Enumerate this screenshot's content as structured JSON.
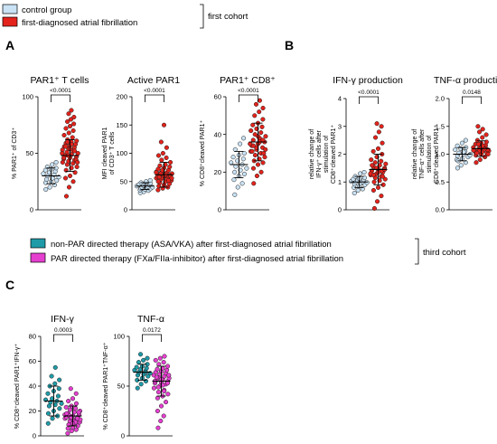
{
  "figure": {
    "letters": [
      "A",
      "B",
      "C"
    ],
    "legend_top": {
      "items": [
        {
          "label": "control group",
          "color": "#c9e2f4"
        },
        {
          "label": "first-diagnosed atrial fibrillation",
          "color": "#e3231c"
        }
      ],
      "cohort": "first cohort"
    },
    "legend_mid": {
      "items": [
        {
          "label": "non-PAR directed therapy (ASA/VKA) after first-diagnosed atrial fibrillation",
          "color": "#1f9ba8"
        },
        {
          "label": "PAR directed therapy (FXa/FIIa-inhibitor) after first-diagnosed atrial fibrillation",
          "color": "#e53fd0"
        }
      ],
      "cohort": "third cohort"
    }
  },
  "chart_data": [
    {
      "type": "scatter",
      "panel": "A",
      "title": "PAR1⁺ T cells",
      "ylabel": "% PAR1⁺ of CD3⁺",
      "ylim": [
        0,
        100
      ],
      "yticks": [
        0,
        50,
        100
      ],
      "pvalue": "<0.0001",
      "series": [
        {
          "values": [
            18,
            20,
            22,
            24,
            25,
            26,
            27,
            28,
            29,
            30,
            31,
            32,
            33,
            34,
            35,
            36,
            37,
            38,
            40,
            42
          ],
          "mean": 30,
          "sd": 7
        },
        {
          "values": [
            12,
            20,
            25,
            28,
            30,
            33,
            35,
            37,
            38,
            40,
            41,
            42,
            43,
            44,
            45,
            46,
            47,
            48,
            49,
            50,
            51,
            52,
            53,
            54,
            55,
            56,
            57,
            58,
            59,
            60,
            61,
            62,
            64,
            66,
            68,
            70,
            72,
            74,
            76,
            78,
            80,
            82,
            85,
            88,
            50,
            48,
            52,
            46,
            54,
            44,
            56,
            58,
            42,
            60
          ],
          "mean": 48,
          "sd": 14
        }
      ]
    },
    {
      "type": "scatter",
      "panel": "A",
      "title": "Active PAR1",
      "ylabel": "MFI cleaved PAR1 of CD3⁺ T cells",
      "ylim": [
        0,
        200
      ],
      "yticks": [
        0,
        50,
        100,
        150,
        200
      ],
      "pvalue": "<0.0001",
      "series": [
        {
          "values": [
            30,
            32,
            34,
            35,
            36,
            37,
            38,
            39,
            40,
            40,
            41,
            42,
            43,
            44,
            45,
            46,
            47,
            48,
            50,
            52
          ],
          "mean": 42,
          "sd": 6
        },
        {
          "values": [
            35,
            38,
            40,
            42,
            44,
            46,
            48,
            50,
            52,
            54,
            55,
            56,
            57,
            58,
            59,
            60,
            61,
            62,
            63,
            64,
            65,
            66,
            67,
            68,
            70,
            72,
            74,
            76,
            78,
            80,
            84,
            88,
            92,
            96,
            100,
            110,
            120,
            150,
            60,
            58,
            62,
            56,
            64,
            54,
            66,
            70,
            52,
            50
          ],
          "mean": 62,
          "sd": 22
        }
      ]
    },
    {
      "type": "scatter",
      "panel": "A",
      "title": "PAR1⁺ CD8⁺",
      "ylabel": "% CD8⁺cleaved PAR1⁺",
      "ylim": [
        0,
        60
      ],
      "yticks": [
        0,
        20,
        40,
        60
      ],
      "pvalue": "<0.0001",
      "series": [
        {
          "values": [
            8,
            12,
            14,
            16,
            18,
            19,
            20,
            21,
            22,
            23,
            24,
            25,
            26,
            27,
            28,
            29,
            30,
            32,
            35,
            38
          ],
          "mean": 24,
          "sd": 7
        },
        {
          "values": [
            14,
            18,
            20,
            22,
            24,
            25,
            26,
            27,
            28,
            29,
            30,
            31,
            32,
            33,
            34,
            35,
            36,
            37,
            38,
            39,
            40,
            41,
            42,
            43,
            44,
            45,
            46,
            48,
            50,
            52,
            54,
            56,
            58,
            35,
            33,
            37,
            31,
            39,
            30,
            34,
            36,
            32
          ],
          "mean": 36,
          "sd": 10
        }
      ]
    },
    {
      "type": "scatter",
      "panel": "B",
      "title": "IFN-γ production",
      "ylabel": "relative change of IFN-γ⁺ cells after stimulation of CD8⁺cleaved PAR1⁺",
      "ylim": [
        0,
        4
      ],
      "yticks": [
        0,
        1,
        2,
        3,
        4
      ],
      "pvalue": "<0.0001",
      "series": [
        {
          "values": [
            0.6,
            0.7,
            0.75,
            0.8,
            0.85,
            0.9,
            0.92,
            0.95,
            0.98,
            1.0,
            1.0,
            1.02,
            1.05,
            1.08,
            1.1,
            1.12,
            1.15,
            1.2,
            1.3,
            1.35
          ],
          "mean": 1.0,
          "sd": 0.2
        },
        {
          "values": [
            0.05,
            0.3,
            0.5,
            0.7,
            0.8,
            0.9,
            1.0,
            1.05,
            1.1,
            1.15,
            1.2,
            1.25,
            1.3,
            1.35,
            1.4,
            1.45,
            1.5,
            1.55,
            1.6,
            1.65,
            1.7,
            1.75,
            1.8,
            1.9,
            2.0,
            2.1,
            2.2,
            2.4,
            2.6,
            2.8,
            3.0,
            3.1,
            1.4,
            1.3,
            1.5,
            1.2,
            1.6,
            1.35,
            1.45,
            1.25
          ],
          "mean": 1.45,
          "sd": 0.55
        }
      ]
    },
    {
      "type": "scatter",
      "panel": "B",
      "title": "TNF-α production",
      "ylabel": "relative change of TNF-α⁺ cells after stimulation of CD8⁺cleaved PAR1⁺",
      "ylim": [
        0,
        2
      ],
      "yticks": [
        0.0,
        0.5,
        1.0,
        1.5,
        2.0
      ],
      "pvalue": "0.0148",
      "series": [
        {
          "values": [
            0.75,
            0.8,
            0.85,
            0.9,
            0.92,
            0.95,
            0.97,
            1.0,
            1.0,
            1.02,
            1.05,
            1.08,
            1.1,
            1.12,
            1.15,
            1.2,
            1.25,
            0.88,
            1.04,
            0.98
          ],
          "mean": 1.0,
          "sd": 0.12
        },
        {
          "values": [
            0.85,
            0.9,
            0.95,
            0.98,
            1.0,
            1.02,
            1.04,
            1.05,
            1.06,
            1.08,
            1.1,
            1.12,
            1.14,
            1.16,
            1.18,
            1.2,
            1.22,
            1.25,
            1.3,
            1.35,
            1.4,
            1.45,
            1.5,
            1.06,
            1.1,
            1.04,
            1.12,
            1.08,
            1.02,
            1.15,
            1.0,
            1.18,
            1.09,
            1.07
          ],
          "mean": 1.1,
          "sd": 0.14
        }
      ]
    },
    {
      "type": "scatter",
      "panel": "C",
      "title": "IFN-γ",
      "ylabel": "% CD8⁺cleaved PAR1⁺IFN-γ⁺",
      "ylim": [
        0,
        80
      ],
      "yticks": [
        0,
        20,
        40,
        60,
        80
      ],
      "pvalue": "0.0003",
      "series": [
        {
          "values": [
            10,
            14,
            16,
            18,
            20,
            22,
            24,
            25,
            26,
            27,
            28,
            29,
            30,
            32,
            34,
            36,
            38,
            40,
            42,
            45,
            48,
            55
          ],
          "mean": 28,
          "sd": 12
        },
        {
          "values": [
            2,
            4,
            5,
            6,
            7,
            8,
            9,
            10,
            11,
            12,
            13,
            14,
            14,
            15,
            15,
            16,
            17,
            18,
            19,
            20,
            21,
            22,
            23,
            24,
            26,
            28,
            30,
            34,
            38,
            12,
            13,
            16,
            11,
            17,
            15,
            14,
            18,
            10,
            19,
            9
          ],
          "mean": 16,
          "sd": 8
        }
      ]
    },
    {
      "type": "scatter",
      "panel": "C",
      "title": "TNF-α",
      "ylabel": "% CD8⁺cleaved PAR1⁺TNF-α⁺",
      "ylim": [
        0,
        100
      ],
      "yticks": [
        0,
        50,
        100
      ],
      "pvalue": "0.0172",
      "series": [
        {
          "values": [
            48,
            52,
            55,
            56,
            58,
            60,
            61,
            62,
            63,
            64,
            65,
            66,
            67,
            68,
            69,
            70,
            72,
            74,
            76,
            78,
            82,
            64
          ],
          "mean": 64,
          "sd": 8
        },
        {
          "values": [
            8,
            15,
            20,
            25,
            30,
            34,
            38,
            40,
            42,
            44,
            46,
            48,
            50,
            52,
            53,
            54,
            55,
            56,
            57,
            58,
            59,
            60,
            61,
            62,
            63,
            64,
            65,
            66,
            67,
            68,
            70,
            72,
            74,
            76,
            78,
            80,
            55,
            57,
            53,
            59,
            51,
            61,
            49,
            45
          ],
          "mean": 55,
          "sd": 15
        }
      ]
    }
  ]
}
